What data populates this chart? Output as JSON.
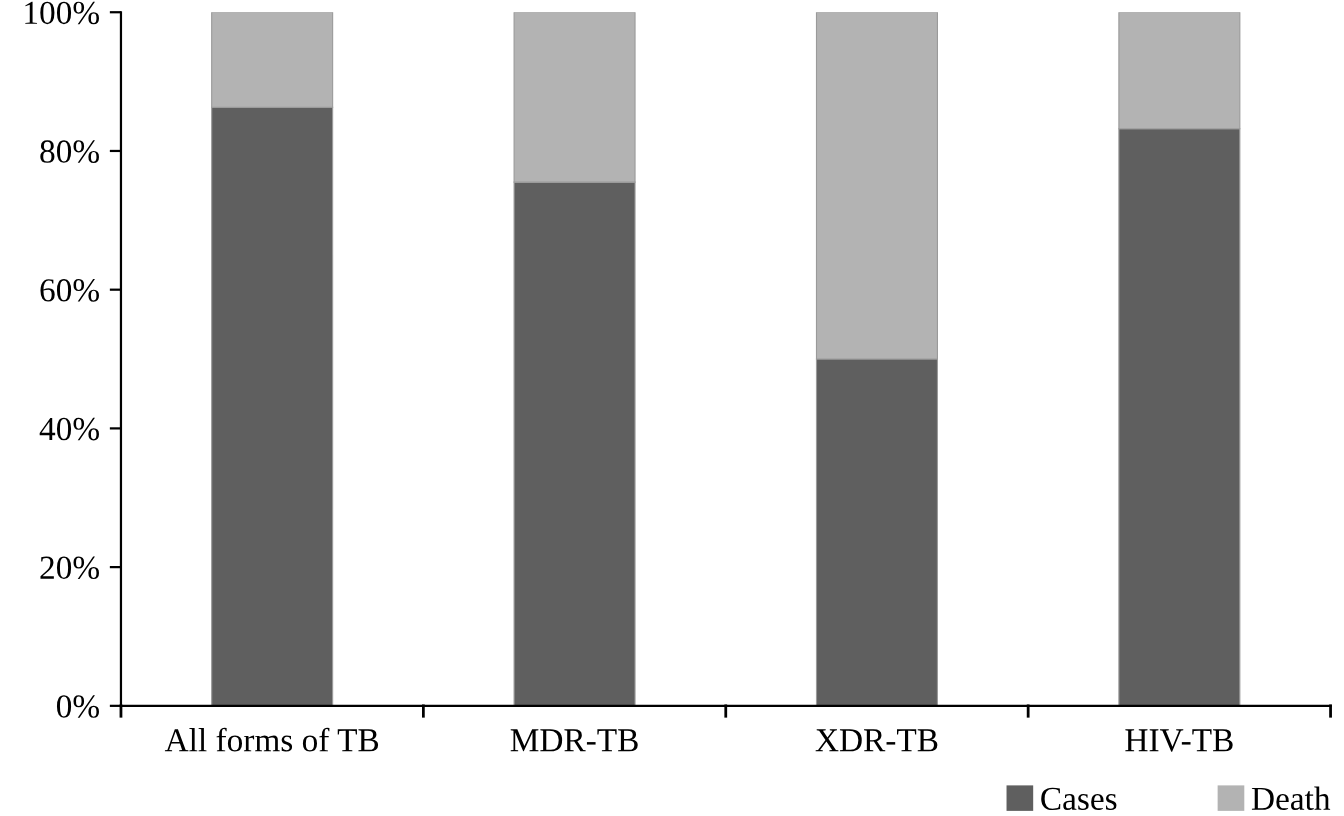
{
  "chart_data": {
    "type": "bar",
    "stacked": true,
    "categories": [
      "All forms of TB",
      "MDR-TB",
      "XDR-TB",
      "HIV-TB"
    ],
    "series": [
      {
        "name": "Cases",
        "color": "#5f5f5f",
        "values": [
          86.3,
          75.5,
          50,
          83.2
        ]
      },
      {
        "name": "Death",
        "color": "#b3b3b3",
        "values": [
          13.7,
          24.5,
          50,
          16.8
        ]
      }
    ],
    "ylim": [
      0,
      100
    ],
    "yticks": [
      {
        "value": 0,
        "label": "0%"
      },
      {
        "value": 20,
        "label": "20%"
      },
      {
        "value": 40,
        "label": "40%"
      },
      {
        "value": 60,
        "label": "60%"
      },
      {
        "value": 80,
        "label": "80%"
      },
      {
        "value": 100,
        "label": "100%"
      }
    ],
    "grid": false,
    "legend": "bottom right"
  }
}
